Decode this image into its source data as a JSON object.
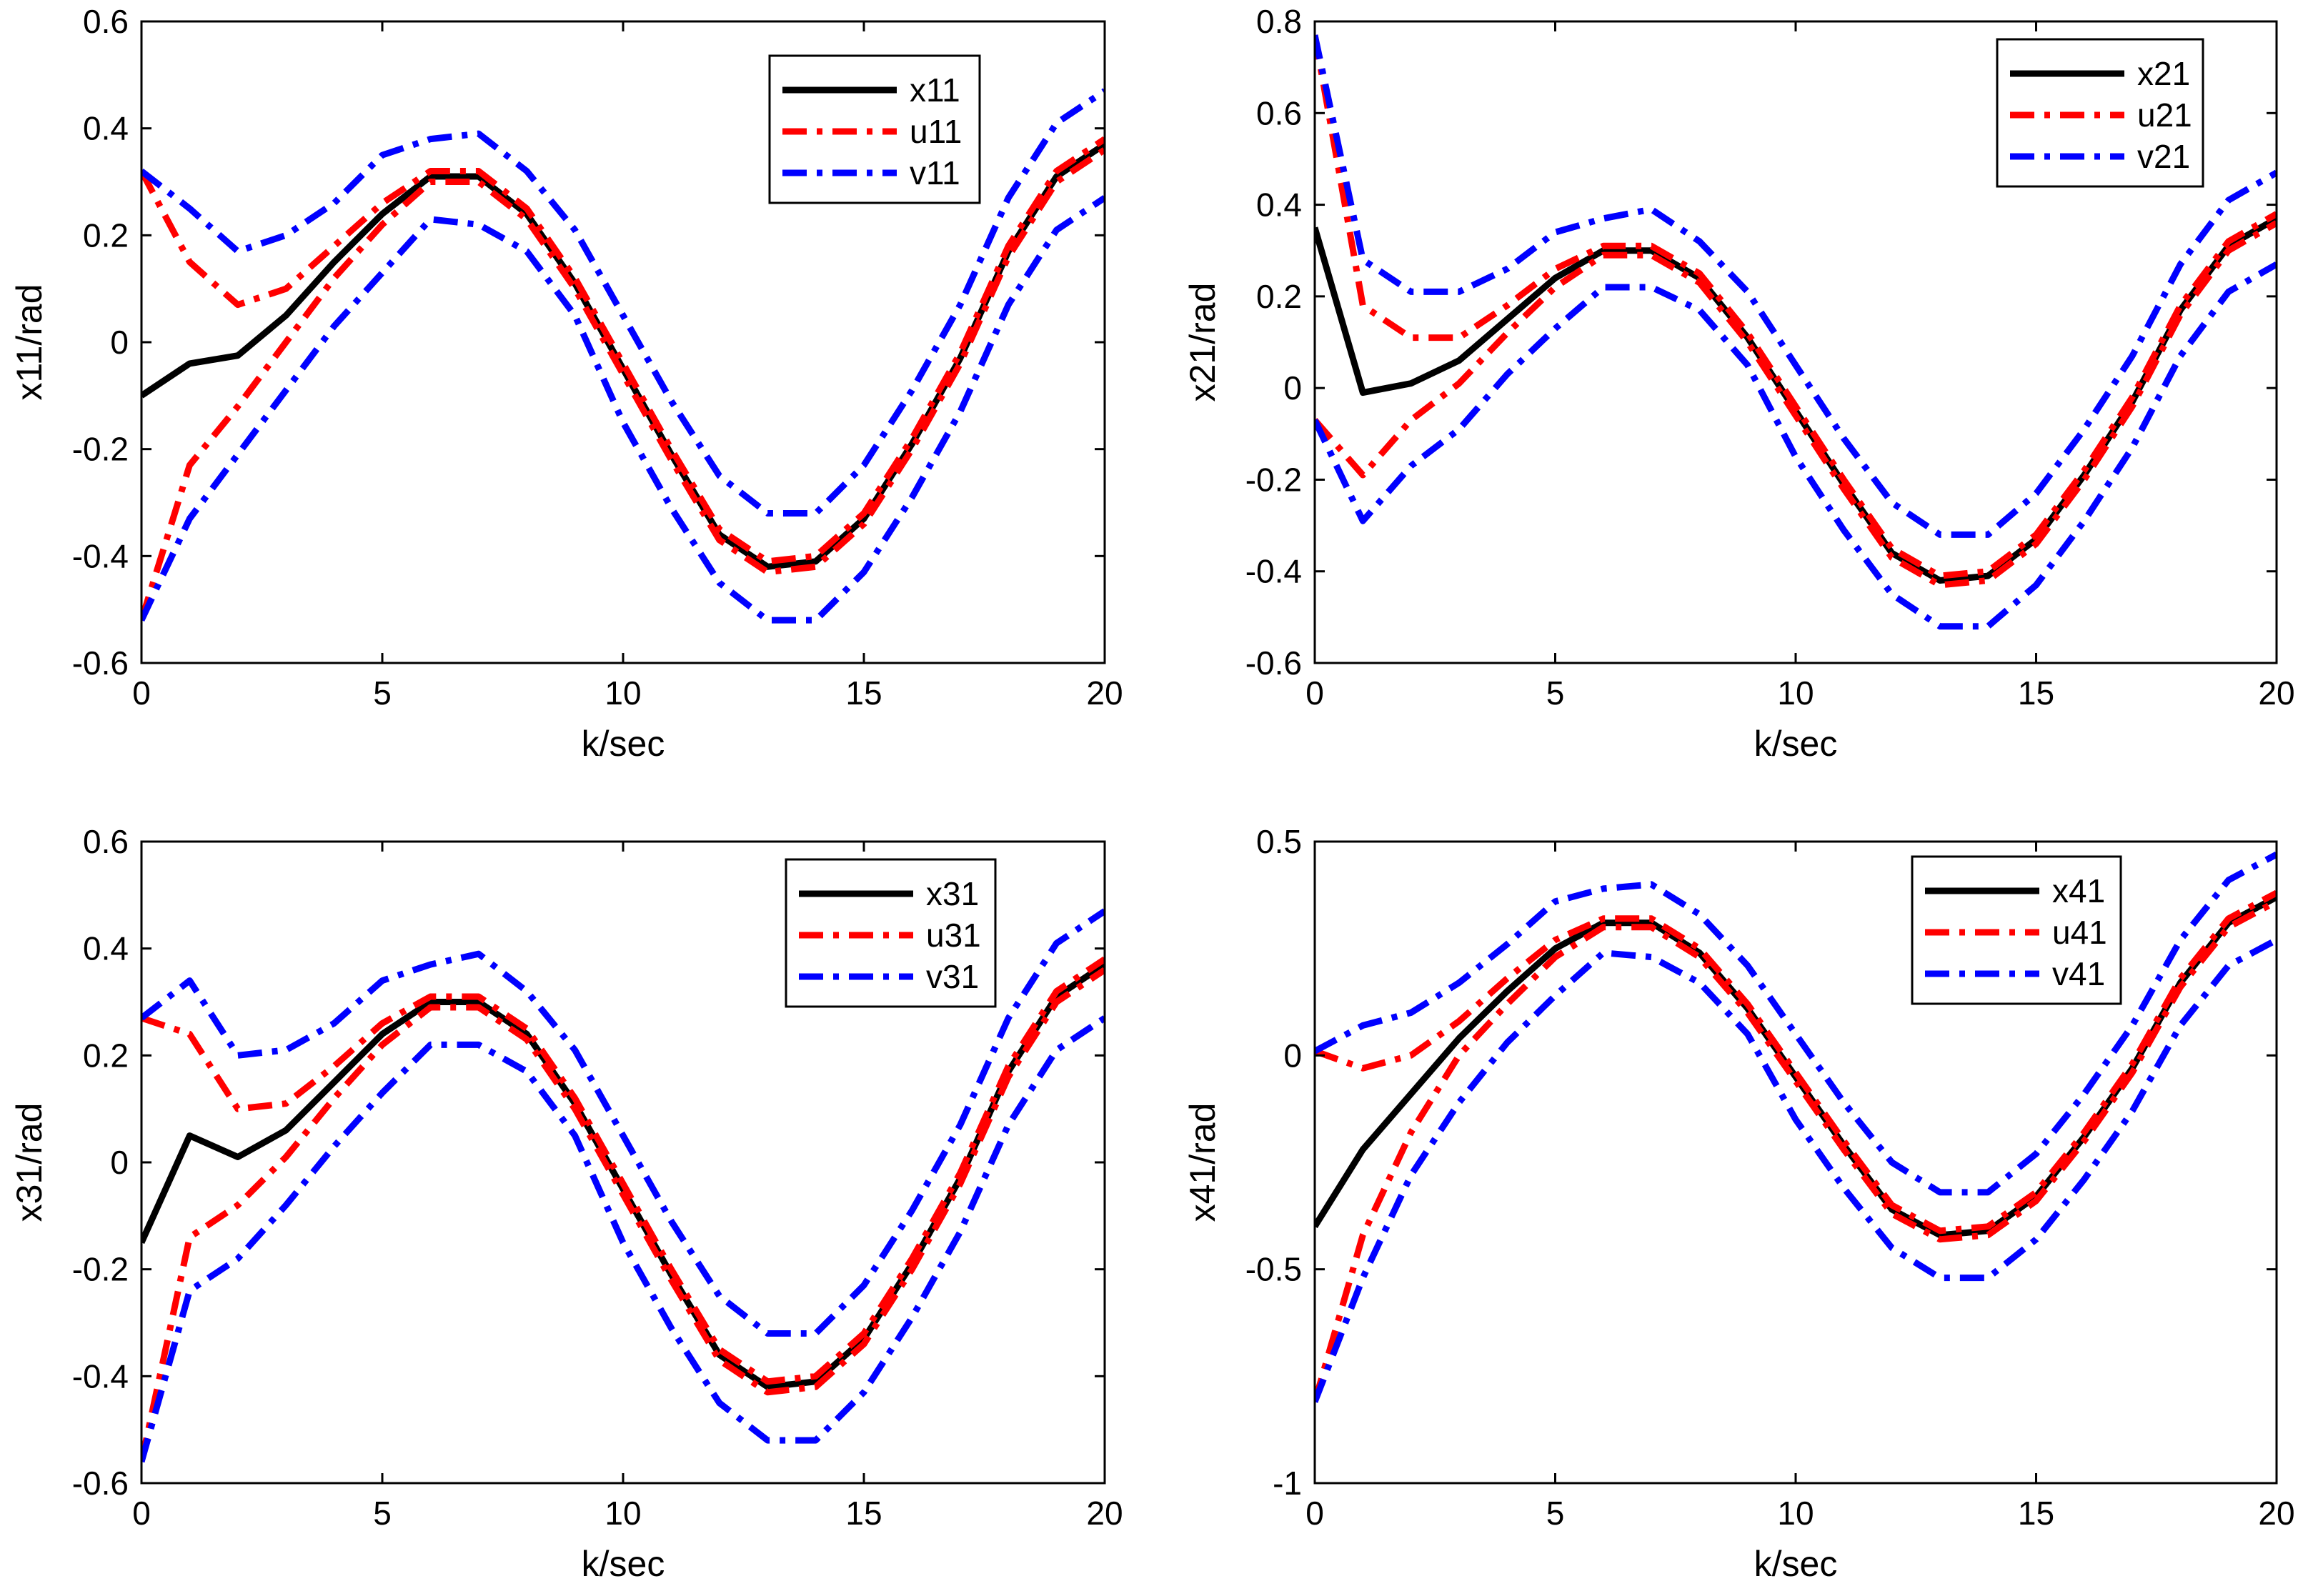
{
  "chart_data": [
    {
      "type": "line",
      "xlabel": "k/sec",
      "ylabel": "x11/rad",
      "xlim": [
        0,
        20
      ],
      "ylim": [
        -0.6,
        0.6
      ],
      "xticks": [
        0,
        5,
        10,
        15,
        20
      ],
      "xtick_labels": [
        "0",
        "5",
        "10",
        "15",
        "20"
      ],
      "yticks": [
        -0.6,
        -0.4,
        -0.2,
        0,
        0.2,
        0.4,
        0.6
      ],
      "ytick_labels": [
        "-0.6",
        "-0.4",
        "-0.2",
        "0",
        "0.2",
        "0.4",
        "0.6"
      ],
      "legend_position": "top-right",
      "x": [
        0,
        1,
        2,
        3,
        4,
        5,
        6,
        7,
        8,
        9,
        10,
        11,
        12,
        13,
        14,
        15,
        16,
        17,
        18,
        19,
        20
      ],
      "series": [
        {
          "name": "x11",
          "color": "#000000",
          "style": "solid",
          "values": [
            -0.1,
            -0.04,
            -0.025,
            0.05,
            0.15,
            0.24,
            0.31,
            0.31,
            0.24,
            0.11,
            -0.05,
            -0.21,
            -0.36,
            -0.42,
            -0.41,
            -0.33,
            -0.19,
            -0.03,
            0.17,
            0.31,
            0.37
          ]
        },
        {
          "name": "u11",
          "color": "#ff0000",
          "style": "dashdot",
          "values": [
            0.32,
            0.15,
            0.07,
            0.1,
            0.18,
            0.26,
            0.32,
            0.32,
            0.25,
            0.12,
            -0.04,
            -0.2,
            -0.35,
            -0.41,
            -0.4,
            -0.32,
            -0.18,
            -0.02,
            0.18,
            0.32,
            0.38
          ]
        },
        {
          "name": "u11",
          "color": "#ff0000",
          "style": "dashdot",
          "legend": false,
          "values": [
            -0.52,
            -0.23,
            -0.12,
            0.0,
            0.12,
            0.22,
            0.3,
            0.3,
            0.23,
            0.1,
            -0.06,
            -0.22,
            -0.37,
            -0.43,
            -0.42,
            -0.34,
            -0.2,
            -0.04,
            0.16,
            0.3,
            0.36
          ]
        },
        {
          "name": "v11",
          "color": "#0000ff",
          "style": "dashdot",
          "values": [
            0.32,
            0.25,
            0.17,
            0.2,
            0.26,
            0.35,
            0.38,
            0.39,
            0.32,
            0.21,
            0.05,
            -0.11,
            -0.25,
            -0.32,
            -0.32,
            -0.23,
            -0.09,
            0.07,
            0.27,
            0.41,
            0.47
          ]
        },
        {
          "name": "v11",
          "color": "#0000ff",
          "style": "dashdot",
          "legend": false,
          "values": [
            -0.52,
            -0.33,
            -0.21,
            -0.09,
            0.03,
            0.13,
            0.23,
            0.22,
            0.17,
            0.05,
            -0.15,
            -0.31,
            -0.45,
            -0.52,
            -0.52,
            -0.43,
            -0.29,
            -0.13,
            0.07,
            0.21,
            0.27
          ]
        }
      ]
    },
    {
      "type": "line",
      "xlabel": "k/sec",
      "ylabel": "x21/rad",
      "xlim": [
        0,
        20
      ],
      "ylim": [
        -0.6,
        0.8
      ],
      "xticks": [
        0,
        5,
        10,
        15,
        20
      ],
      "xtick_labels": [
        "0",
        "5",
        "10",
        "15",
        "20"
      ],
      "yticks": [
        -0.6,
        -0.4,
        -0.2,
        0,
        0.2,
        0.4,
        0.6,
        0.8
      ],
      "ytick_labels": [
        "-0.6",
        "-0.4",
        "-0.2",
        "0",
        "0.2",
        "0.4",
        "0.6",
        "0.8"
      ],
      "legend_position": "top-right",
      "x": [
        0,
        1,
        2,
        3,
        4,
        5,
        6,
        7,
        8,
        9,
        10,
        11,
        12,
        13,
        14,
        15,
        16,
        17,
        18,
        19,
        20
      ],
      "series": [
        {
          "name": "x21",
          "color": "#000000",
          "style": "solid",
          "values": [
            0.35,
            -0.01,
            0.01,
            0.06,
            0.15,
            0.24,
            0.3,
            0.3,
            0.24,
            0.11,
            -0.05,
            -0.21,
            -0.36,
            -0.42,
            -0.41,
            -0.33,
            -0.19,
            -0.03,
            0.17,
            0.31,
            0.37
          ]
        },
        {
          "name": "u21",
          "color": "#ff0000",
          "style": "dashdot",
          "values": [
            0.77,
            0.18,
            0.11,
            0.11,
            0.18,
            0.26,
            0.31,
            0.31,
            0.25,
            0.12,
            -0.04,
            -0.2,
            -0.35,
            -0.41,
            -0.4,
            -0.32,
            -0.18,
            -0.02,
            0.18,
            0.32,
            0.38
          ]
        },
        {
          "name": "u21",
          "color": "#ff0000",
          "style": "dashdot",
          "legend": false,
          "values": [
            -0.07,
            -0.19,
            -0.07,
            0.01,
            0.12,
            0.22,
            0.29,
            0.29,
            0.23,
            0.1,
            -0.06,
            -0.22,
            -0.37,
            -0.43,
            -0.42,
            -0.34,
            -0.2,
            -0.04,
            0.16,
            0.3,
            0.36
          ]
        },
        {
          "name": "v21",
          "color": "#0000ff",
          "style": "dashdot",
          "values": [
            0.77,
            0.28,
            0.21,
            0.21,
            0.26,
            0.34,
            0.37,
            0.39,
            0.32,
            0.21,
            0.05,
            -0.11,
            -0.25,
            -0.32,
            -0.32,
            -0.23,
            -0.09,
            0.07,
            0.27,
            0.41,
            0.47
          ]
        },
        {
          "name": "v21",
          "color": "#0000ff",
          "style": "dashdot",
          "legend": false,
          "values": [
            -0.07,
            -0.29,
            -0.17,
            -0.09,
            0.03,
            0.13,
            0.22,
            0.22,
            0.17,
            0.05,
            -0.15,
            -0.31,
            -0.45,
            -0.52,
            -0.52,
            -0.43,
            -0.29,
            -0.13,
            0.07,
            0.21,
            0.27
          ]
        }
      ]
    },
    {
      "type": "line",
      "xlabel": "k/sec",
      "ylabel": "x31/rad",
      "xlim": [
        0,
        20
      ],
      "ylim": [
        -0.6,
        0.6
      ],
      "xticks": [
        0,
        5,
        10,
        15,
        20
      ],
      "xtick_labels": [
        "0",
        "5",
        "10",
        "15",
        "20"
      ],
      "yticks": [
        -0.6,
        -0.4,
        -0.2,
        0,
        0.2,
        0.4,
        0.6
      ],
      "ytick_labels": [
        "-0.6",
        "-0.4",
        "-0.2",
        "0",
        "0.2",
        "0.4",
        "0.6"
      ],
      "legend_position": "top-right",
      "x": [
        0,
        1,
        2,
        3,
        4,
        5,
        6,
        7,
        8,
        9,
        10,
        11,
        12,
        13,
        14,
        15,
        16,
        17,
        18,
        19,
        20
      ],
      "series": [
        {
          "name": "x31",
          "color": "#000000",
          "style": "solid",
          "values": [
            -0.15,
            0.05,
            0.01,
            0.06,
            0.15,
            0.24,
            0.3,
            0.3,
            0.24,
            0.11,
            -0.05,
            -0.21,
            -0.36,
            -0.42,
            -0.41,
            -0.33,
            -0.19,
            -0.03,
            0.17,
            0.31,
            0.37
          ]
        },
        {
          "name": "u31",
          "color": "#ff0000",
          "style": "dashdot",
          "values": [
            0.27,
            0.24,
            0.1,
            0.11,
            0.18,
            0.26,
            0.31,
            0.31,
            0.25,
            0.12,
            -0.04,
            -0.2,
            -0.35,
            -0.41,
            -0.4,
            -0.32,
            -0.18,
            -0.02,
            0.18,
            0.32,
            0.38
          ]
        },
        {
          "name": "u31",
          "color": "#ff0000",
          "style": "dashdot",
          "legend": false,
          "values": [
            -0.56,
            -0.14,
            -0.08,
            0.01,
            0.12,
            0.22,
            0.29,
            0.29,
            0.23,
            0.1,
            -0.06,
            -0.22,
            -0.37,
            -0.43,
            -0.42,
            -0.34,
            -0.2,
            -0.04,
            0.16,
            0.3,
            0.36
          ]
        },
        {
          "name": "v31",
          "color": "#0000ff",
          "style": "dashdot",
          "values": [
            0.27,
            0.34,
            0.2,
            0.21,
            0.26,
            0.34,
            0.37,
            0.39,
            0.32,
            0.21,
            0.05,
            -0.11,
            -0.25,
            -0.32,
            -0.32,
            -0.23,
            -0.09,
            0.07,
            0.27,
            0.41,
            0.47
          ]
        },
        {
          "name": "v31",
          "color": "#0000ff",
          "style": "dashdot",
          "legend": false,
          "values": [
            -0.56,
            -0.24,
            -0.18,
            -0.08,
            0.03,
            0.13,
            0.22,
            0.22,
            0.17,
            0.05,
            -0.15,
            -0.31,
            -0.45,
            -0.52,
            -0.52,
            -0.43,
            -0.29,
            -0.13,
            0.07,
            0.21,
            0.27
          ]
        }
      ]
    },
    {
      "type": "line",
      "xlabel": "k/sec",
      "ylabel": "x41/rad",
      "xlim": [
        0,
        20
      ],
      "ylim": [
        -1,
        0.5
      ],
      "xticks": [
        0,
        5,
        10,
        15,
        20
      ],
      "xtick_labels": [
        "0",
        "5",
        "10",
        "15",
        "20"
      ],
      "yticks": [
        -1,
        -0.5,
        0,
        0.5
      ],
      "ytick_labels": [
        "-1",
        "-0.5",
        "0",
        "0.5"
      ],
      "legend_position": "top-right",
      "x": [
        0,
        1,
        2,
        3,
        4,
        5,
        6,
        7,
        8,
        9,
        10,
        11,
        12,
        13,
        14,
        15,
        16,
        17,
        18,
        19,
        20
      ],
      "series": [
        {
          "name": "x41",
          "color": "#000000",
          "style": "solid",
          "values": [
            -0.4,
            -0.22,
            -0.09,
            0.04,
            0.15,
            0.25,
            0.31,
            0.31,
            0.24,
            0.11,
            -0.05,
            -0.21,
            -0.36,
            -0.42,
            -0.41,
            -0.33,
            -0.19,
            -0.03,
            0.17,
            0.31,
            0.37
          ]
        },
        {
          "name": "u41",
          "color": "#ff0000",
          "style": "dashdot",
          "values": [
            0.01,
            -0.03,
            0.0,
            0.08,
            0.18,
            0.27,
            0.32,
            0.32,
            0.25,
            0.12,
            -0.04,
            -0.2,
            -0.35,
            -0.41,
            -0.4,
            -0.32,
            -0.18,
            -0.02,
            0.18,
            0.32,
            0.38
          ]
        },
        {
          "name": "u41",
          "color": "#ff0000",
          "style": "dashdot",
          "legend": false,
          "values": [
            -0.81,
            -0.42,
            -0.18,
            0.0,
            0.12,
            0.23,
            0.3,
            0.3,
            0.23,
            0.1,
            -0.06,
            -0.22,
            -0.37,
            -0.43,
            -0.42,
            -0.34,
            -0.2,
            -0.04,
            0.16,
            0.3,
            0.36
          ]
        },
        {
          "name": "v41",
          "color": "#0000ff",
          "style": "dashdot",
          "values": [
            0.01,
            0.07,
            0.1,
            0.17,
            0.26,
            0.36,
            0.39,
            0.4,
            0.33,
            0.21,
            0.05,
            -0.11,
            -0.25,
            -0.32,
            -0.32,
            -0.23,
            -0.09,
            0.07,
            0.27,
            0.41,
            0.47
          ]
        },
        {
          "name": "v41",
          "color": "#0000ff",
          "style": "dashdot",
          "legend": false,
          "values": [
            -0.81,
            -0.52,
            -0.28,
            -0.11,
            0.03,
            0.14,
            0.24,
            0.23,
            0.17,
            0.05,
            -0.15,
            -0.31,
            -0.45,
            -0.52,
            -0.52,
            -0.43,
            -0.29,
            -0.13,
            0.07,
            0.21,
            0.27
          ]
        }
      ]
    }
  ]
}
